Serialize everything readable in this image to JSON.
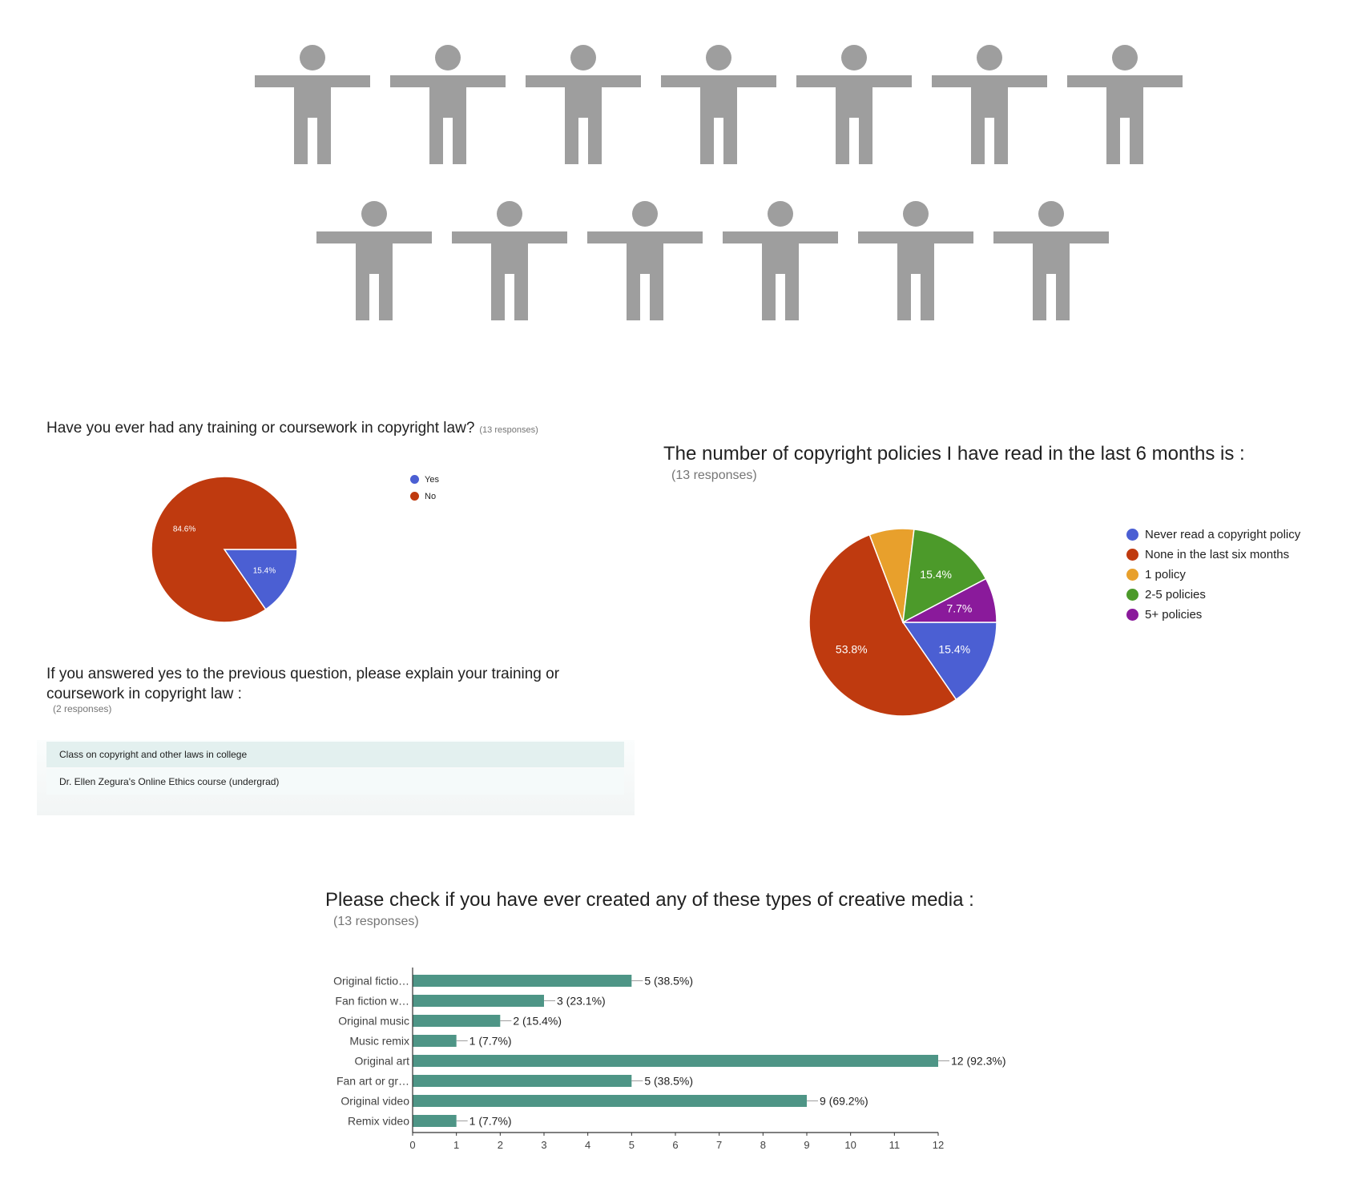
{
  "pictogram": {
    "icon": "person-icon",
    "count": 13,
    "color": "#9e9e9e",
    "rows": [
      7,
      6
    ]
  },
  "colors": {
    "blue": "#4b5fd3",
    "red": "#bf3a0f",
    "orange": "#e8a02c",
    "green": "#4c9a2a",
    "purple": "#8a1a9b",
    "teal": "#4e9586"
  },
  "q1": {
    "title": "Have you ever had any training or coursework in copyright law?",
    "responses": "(13 responses)"
  },
  "q2": {
    "title": "If you answered yes to the previous question, please explain your training or coursework in copyright law :",
    "responses": "(2 responses)",
    "answers": [
      "Class on copyright and other laws in college",
      "Dr. Ellen Zegura's Online Ethics course (undergrad)"
    ]
  },
  "q3": {
    "title": "The number of copyright policies I have read in the last 6 months is :",
    "responses": "(13 responses)"
  },
  "q4": {
    "title": "Please check if you have ever created any of these types of creative media :",
    "responses": "(13 responses)"
  },
  "chart_data": [
    {
      "type": "pie",
      "title": "Have you ever had any training or coursework in copyright law?",
      "slices": [
        {
          "label": "Yes",
          "value": 15.4,
          "display": "15.4%",
          "color": "#4b5fd3"
        },
        {
          "label": "No",
          "value": 84.6,
          "display": "84.6%",
          "color": "#bf3a0f"
        }
      ],
      "legend": "right"
    },
    {
      "type": "pie",
      "title": "The number of copyright policies I have read in the last 6 months is :",
      "slices": [
        {
          "label": "Never read a copyright policy",
          "value": 15.4,
          "display": "15.4%",
          "color": "#4b5fd3"
        },
        {
          "label": "None in the last six months",
          "value": 53.8,
          "display": "53.8%",
          "color": "#bf3a0f"
        },
        {
          "label": "1 policy",
          "value": 7.7,
          "display": "",
          "color": "#e8a02c"
        },
        {
          "label": "2-5 policies",
          "value": 15.4,
          "display": "15.4%",
          "color": "#4c9a2a"
        },
        {
          "label": "5+ policies",
          "value": 7.7,
          "display": "7.7%",
          "color": "#8a1a9b"
        }
      ],
      "legend": "right"
    },
    {
      "type": "bar",
      "orientation": "horizontal",
      "title": "Please check if you have ever created any of these types of creative media :",
      "categories": [
        "Original fictio…",
        "Fan fiction w…",
        "Original music",
        "Music remix",
        "Original art",
        "Fan art or gr…",
        "Original video",
        "Remix video"
      ],
      "values": [
        5,
        3,
        2,
        1,
        12,
        5,
        9,
        1
      ],
      "labels": [
        "5 (38.5%)",
        "3 (23.1%)",
        "2 (15.4%)",
        "1 (7.7%)",
        "12 (92.3%)",
        "5 (38.5%)",
        "9 (69.2%)",
        "1 (7.7%)"
      ],
      "xlim": [
        0,
        12
      ],
      "xticks": [
        0,
        1,
        2,
        3,
        4,
        5,
        6,
        7,
        8,
        9,
        10,
        11,
        12
      ],
      "color": "#4e9586",
      "grid": false
    }
  ]
}
